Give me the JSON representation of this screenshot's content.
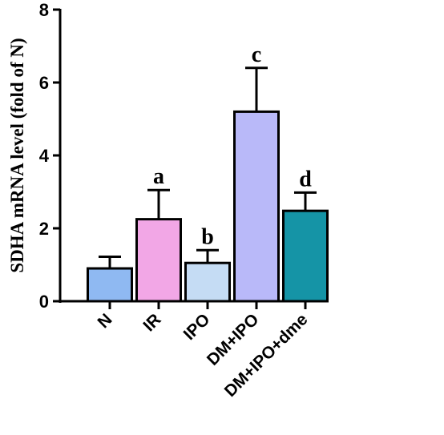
{
  "chart_data": {
    "type": "bar",
    "title": "",
    "xlabel": "",
    "ylabel": "SDHA mRNA level (fold of N)",
    "ylim": [
      0,
      8
    ],
    "yticks": [
      "0",
      "2",
      "4",
      "6",
      "8"
    ],
    "grid": false,
    "categories": [
      "N",
      "IR",
      "IPO",
      "DM+IPO",
      "DM+IPO+dme"
    ],
    "values": [
      0.9,
      2.25,
      1.05,
      5.2,
      2.48
    ],
    "errors": [
      0.32,
      0.8,
      0.35,
      1.2,
      0.5
    ],
    "significance": [
      "",
      "a",
      "b",
      "c",
      "d"
    ],
    "colors": [
      "#8fb9f2",
      "#f2a7e6",
      "#c5dcf4",
      "#b9b9f9",
      "#1594a6"
    ]
  }
}
